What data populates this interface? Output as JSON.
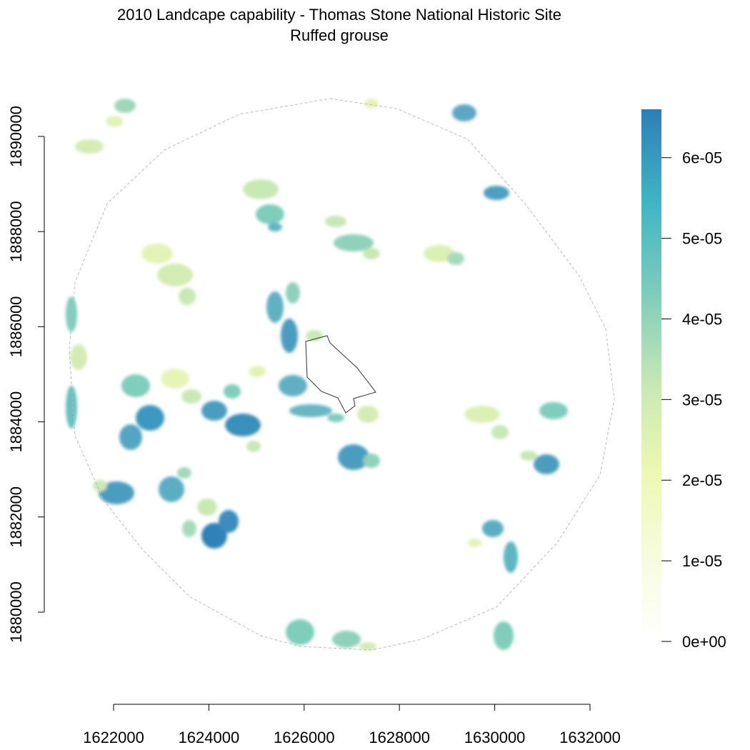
{
  "title": "2010 Landcape capability - Thomas Stone National Historic Site",
  "subtitle": "Ruffed grouse",
  "x_axis": {
    "ticks": [
      "1622000",
      "1624000",
      "1626000",
      "1628000",
      "1630000",
      "1632000"
    ]
  },
  "y_axis": {
    "ticks": [
      "1880000",
      "1882000",
      "1884000",
      "1886000",
      "1888000",
      "1890000"
    ]
  },
  "legend": {
    "ticks": [
      "0e+00",
      "1e-05",
      "2e-05",
      "3e-05",
      "4e-05",
      "5e-05",
      "6e-05"
    ],
    "range": [
      0,
      6.6e-05
    ],
    "colors": [
      "#ffffff",
      "#f7fcdc",
      "#edf8b1",
      "#c7e9b4",
      "#7fcdbb",
      "#41b6c4",
      "#2c7fb8"
    ]
  },
  "colors": {
    "study_area_boundary": "#bbbbbb",
    "park_boundary": "#333333",
    "axis": "#000000"
  }
}
